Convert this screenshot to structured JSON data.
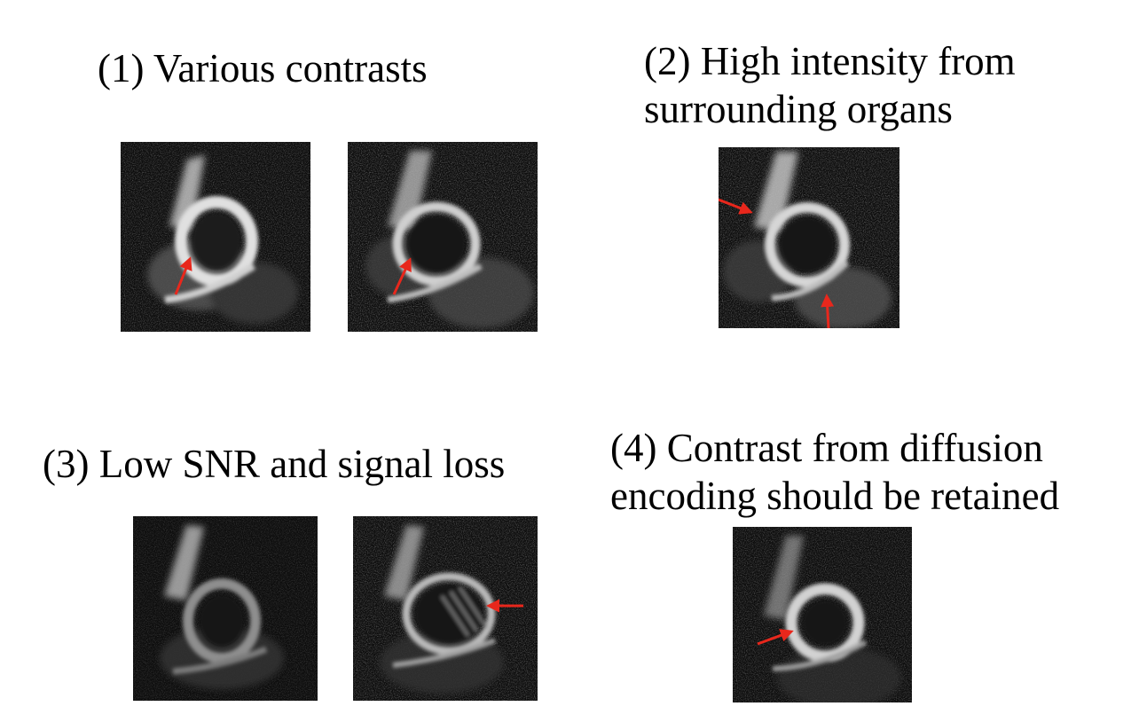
{
  "panels": [
    {
      "id": "1",
      "caption_lines": [
        "(1) Various contrasts"
      ]
    },
    {
      "id": "2",
      "caption_lines": [
        "(2) High intensity from",
        "surrounding organs"
      ]
    },
    {
      "id": "3",
      "caption_lines": [
        "(3) Low SNR and signal loss"
      ]
    },
    {
      "id": "4",
      "caption_lines": [
        "(4) Contrast from diffusion",
        "encoding should be retained"
      ]
    }
  ],
  "colors": {
    "arrow": "#e8271c",
    "background": "#ffffff",
    "image_background": "#0d0d0d"
  }
}
